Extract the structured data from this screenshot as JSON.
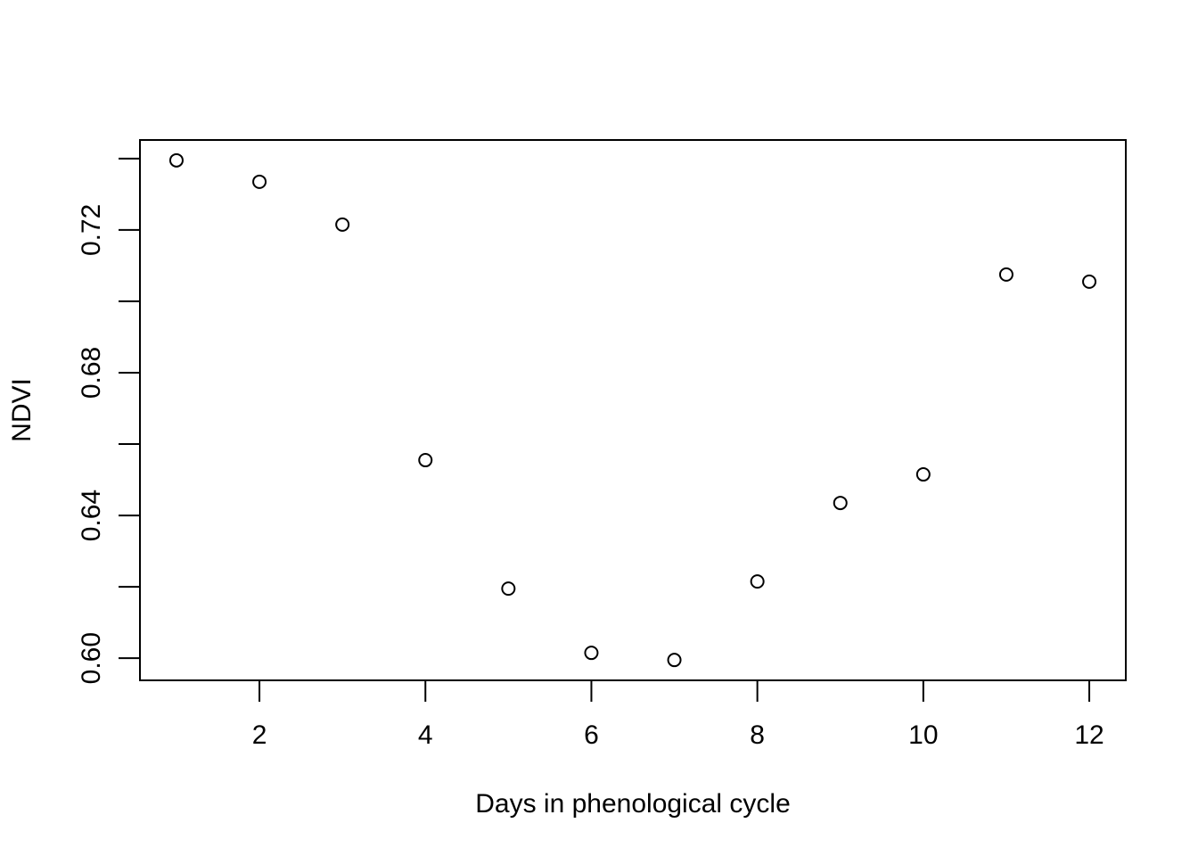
{
  "chart_data": {
    "type": "scatter",
    "title": "",
    "xlabel": "Days in phenological cycle",
    "ylabel": "NDVI",
    "x": [
      1,
      2,
      3,
      4,
      5,
      6,
      7,
      8,
      9,
      10,
      11,
      12
    ],
    "y": [
      0.7395,
      0.7335,
      0.7215,
      0.6555,
      0.6195,
      0.6015,
      0.5995,
      0.6215,
      0.6435,
      0.6515,
      0.7075,
      0.7055
    ],
    "xlim": [
      0.56,
      12.44
    ],
    "ylim": [
      0.5938,
      0.7452
    ],
    "x_ticks": [
      2,
      4,
      6,
      8,
      10,
      12
    ],
    "x_tick_labels": [
      "2",
      "4",
      "6",
      "8",
      "10",
      "12"
    ],
    "y_ticks": [
      0.6,
      0.62,
      0.64,
      0.66,
      0.68,
      0.7,
      0.72,
      0.74
    ],
    "y_tick_labels": [
      "0.60",
      "",
      "0.64",
      "",
      "0.68",
      "",
      "0.72",
      ""
    ],
    "marker": "open-circle",
    "color": "#000000",
    "grid": false,
    "legend": "none"
  }
}
